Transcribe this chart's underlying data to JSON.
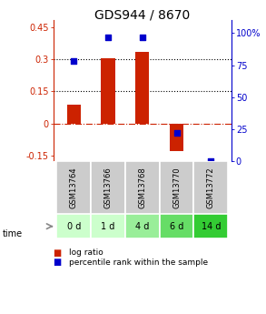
{
  "title": "GDS944 / 8670",
  "samples": [
    "GSM13764",
    "GSM13766",
    "GSM13768",
    "GSM13770",
    "GSM13772"
  ],
  "time_labels": [
    "0 d",
    "1 d",
    "4 d",
    "6 d",
    "14 d"
  ],
  "log_ratios": [
    0.09,
    0.305,
    0.335,
    -0.13,
    0.0
  ],
  "percentile_ranks": [
    78,
    97,
    97,
    22,
    0
  ],
  "ylim_left": [
    -0.175,
    0.48
  ],
  "ylim_right": [
    0,
    110
  ],
  "yticks_left": [
    -0.15,
    0,
    0.15,
    0.3,
    0.45
  ],
  "yticks_right": [
    0,
    25,
    50,
    75,
    100
  ],
  "hlines": [
    0.15,
    0.3
  ],
  "zero_line": 0,
  "bar_color": "#cc2200",
  "dot_color": "#0000cc",
  "bg_color": "#ffffff",
  "plot_bg": "#ffffff",
  "sample_bg": "#cccccc",
  "time_bg_colors": [
    "#ccffcc",
    "#ccffcc",
    "#99ee99",
    "#66dd66",
    "#33cc33"
  ],
  "title_fontsize": 10,
  "tick_fontsize": 7,
  "legend_fontsize": 6.5,
  "bar_width": 0.4
}
